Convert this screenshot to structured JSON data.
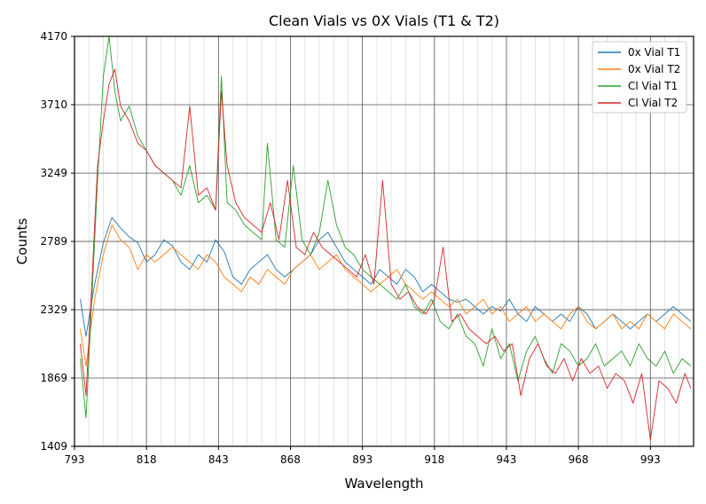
{
  "chart_data": {
    "type": "line",
    "title": "Clean Vials vs 0X Vials (T1 & T2)",
    "xlabel": "Wavelength",
    "ylabel": "Counts",
    "xlim": [
      793,
      1008
    ],
    "ylim": [
      1409,
      4170
    ],
    "xticks": [
      793,
      818,
      843,
      868,
      893,
      918,
      943,
      968,
      993
    ],
    "yticks": [
      1409,
      1869,
      2329,
      2789,
      3249,
      3710,
      4170
    ],
    "grid": true,
    "legend_position": "top-right",
    "series": [
      {
        "name": "0x Vial T1",
        "color": "#1f77b4",
        "x": [
          795,
          797,
          800,
          803,
          806,
          809,
          812,
          815,
          818,
          821,
          824,
          827,
          830,
          833,
          836,
          839,
          842,
          845,
          848,
          851,
          854,
          857,
          860,
          863,
          866,
          869,
          872,
          875,
          878,
          881,
          884,
          887,
          890,
          893,
          896,
          899,
          902,
          905,
          908,
          911,
          914,
          917,
          920,
          923,
          926,
          929,
          932,
          935,
          938,
          941,
          944,
          947,
          950,
          953,
          956,
          959,
          962,
          965,
          968,
          971,
          974,
          977,
          980,
          983,
          986,
          989,
          992,
          995,
          998,
          1001,
          1004,
          1007
        ],
        "y": [
          2400,
          2150,
          2500,
          2780,
          2950,
          2880,
          2820,
          2780,
          2650,
          2700,
          2800,
          2760,
          2650,
          2600,
          2700,
          2650,
          2800,
          2720,
          2550,
          2500,
          2600,
          2650,
          2700,
          2600,
          2550,
          2600,
          2650,
          2700,
          2800,
          2850,
          2750,
          2650,
          2600,
          2550,
          2500,
          2600,
          2550,
          2500,
          2600,
          2550,
          2450,
          2500,
          2450,
          2400,
          2380,
          2400,
          2350,
          2300,
          2350,
          2320,
          2400,
          2300,
          2250,
          2350,
          2300,
          2250,
          2300,
          2250,
          2350,
          2300,
          2200,
          2250,
          2300,
          2250,
          2200,
          2250,
          2300,
          2250,
          2300,
          2350,
          2300,
          2250
        ]
      },
      {
        "name": "0x Vial T2",
        "color": "#ff7f0e",
        "x": [
          795,
          797,
          800,
          803,
          806,
          809,
          812,
          815,
          818,
          821,
          824,
          827,
          830,
          833,
          836,
          839,
          842,
          845,
          848,
          851,
          854,
          857,
          860,
          863,
          866,
          869,
          872,
          875,
          878,
          881,
          884,
          887,
          890,
          893,
          896,
          899,
          902,
          905,
          908,
          911,
          914,
          917,
          920,
          923,
          926,
          929,
          932,
          935,
          938,
          941,
          944,
          947,
          950,
          953,
          956,
          959,
          962,
          965,
          968,
          971,
          974,
          977,
          980,
          983,
          986,
          989,
          992,
          995,
          998,
          1001,
          1004,
          1007
        ],
        "y": [
          2200,
          1950,
          2400,
          2700,
          2900,
          2800,
          2750,
          2600,
          2700,
          2650,
          2700,
          2750,
          2700,
          2650,
          2600,
          2700,
          2650,
          2550,
          2500,
          2450,
          2550,
          2500,
          2600,
          2550,
          2500,
          2600,
          2650,
          2700,
          2600,
          2650,
          2700,
          2600,
          2550,
          2500,
          2450,
          2500,
          2550,
          2600,
          2500,
          2450,
          2400,
          2450,
          2400,
          2350,
          2400,
          2300,
          2350,
          2400,
          2300,
          2350,
          2250,
          2300,
          2350,
          2250,
          2300,
          2250,
          2200,
          2300,
          2350,
          2250,
          2200,
          2250,
          2300,
          2200,
          2250,
          2200,
          2300,
          2250,
          2200,
          2300,
          2250,
          2200
        ]
      },
      {
        "name": "Cl Vial T1",
        "color": "#2ca02c",
        "x": [
          795,
          797,
          799,
          801,
          803,
          805,
          807,
          809,
          812,
          815,
          818,
          821,
          824,
          827,
          830,
          833,
          836,
          839,
          842,
          844,
          846,
          849,
          852,
          855,
          858,
          860,
          863,
          866,
          869,
          872,
          875,
          878,
          881,
          884,
          887,
          890,
          893,
          896,
          899,
          902,
          905,
          908,
          911,
          914,
          917,
          920,
          923,
          926,
          929,
          932,
          935,
          938,
          941,
          944,
          947,
          950,
          953,
          956,
          959,
          962,
          965,
          968,
          971,
          974,
          977,
          980,
          983,
          986,
          989,
          992,
          995,
          998,
          1001,
          1004,
          1007
        ],
        "y": [
          2000,
          1600,
          2400,
          3200,
          3900,
          4170,
          3800,
          3600,
          3700,
          3500,
          3400,
          3300,
          3250,
          3200,
          3100,
          3300,
          3050,
          3100,
          3000,
          3900,
          3050,
          3000,
          2900,
          2850,
          2800,
          3450,
          2800,
          2750,
          3300,
          2800,
          2700,
          2850,
          3200,
          2900,
          2750,
          2700,
          2600,
          2550,
          2500,
          2450,
          2400,
          2500,
          2350,
          2300,
          2400,
          2250,
          2200,
          2300,
          2150,
          2100,
          1950,
          2200,
          2000,
          2100,
          1850,
          2050,
          2150,
          2000,
          1900,
          2100,
          2050,
          1950,
          2000,
          2100,
          1950,
          2000,
          2050,
          1950,
          2100,
          2000,
          1950,
          2050,
          1900,
          2000,
          1950
        ]
      },
      {
        "name": "Cl Vial T2",
        "color": "#d62728",
        "x": [
          795,
          797,
          799,
          801,
          803,
          805,
          807,
          809,
          812,
          815,
          818,
          821,
          824,
          827,
          830,
          833,
          836,
          839,
          842,
          844,
          846,
          849,
          852,
          855,
          858,
          861,
          864,
          867,
          870,
          873,
          876,
          879,
          882,
          885,
          888,
          891,
          894,
          897,
          900,
          903,
          906,
          909,
          912,
          915,
          918,
          921,
          924,
          927,
          930,
          933,
          936,
          939,
          942,
          945,
          948,
          951,
          954,
          957,
          960,
          963,
          966,
          969,
          972,
          975,
          978,
          981,
          984,
          987,
          990,
          993,
          996,
          999,
          1002,
          1005,
          1007
        ],
        "y": [
          2100,
          1750,
          2500,
          3300,
          3600,
          3850,
          3950,
          3700,
          3600,
          3450,
          3400,
          3300,
          3250,
          3200,
          3150,
          3700,
          3100,
          3150,
          3000,
          3800,
          3300,
          3050,
          2950,
          2900,
          2850,
          3050,
          2800,
          3200,
          2750,
          2700,
          2850,
          2750,
          2700,
          2650,
          2600,
          2550,
          2700,
          2500,
          3200,
          2500,
          2400,
          2450,
          2350,
          2300,
          2400,
          2750,
          2250,
          2300,
          2200,
          2150,
          2100,
          2150,
          2050,
          2100,
          1750,
          2000,
          2100,
          1950,
          1900,
          2000,
          1850,
          2000,
          1900,
          1950,
          1800,
          1900,
          1850,
          1700,
          1900,
          1450,
          1850,
          1800,
          1700,
          1900,
          1800
        ]
      }
    ]
  }
}
